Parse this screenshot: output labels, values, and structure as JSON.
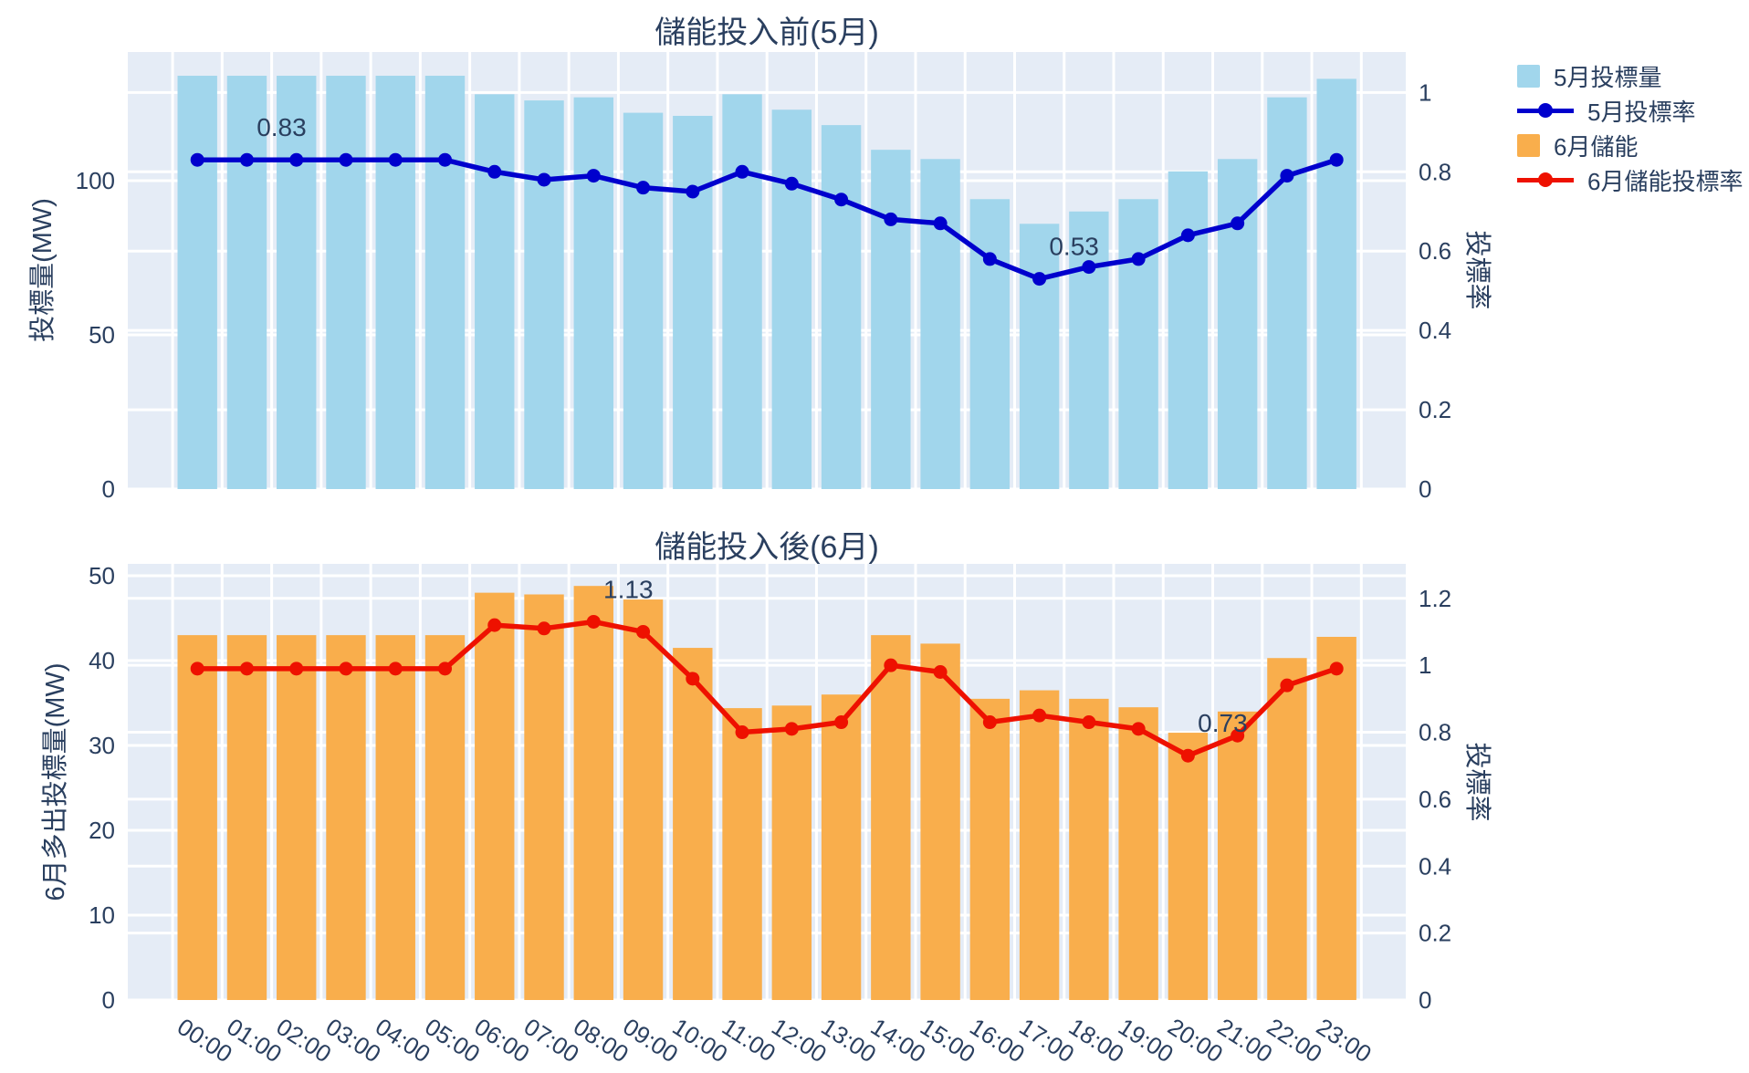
{
  "colors": {
    "text": "#2a3f5f",
    "plot_bg": "#e5ecf6",
    "grid": "#ffffff",
    "may_bar": "#a1d6ec",
    "may_line": "#0000cd",
    "jun_bar": "#f9ae4c",
    "jun_line": "#ee1100"
  },
  "legend": {
    "items": [
      {
        "label": "5月投標量",
        "swatch": "square",
        "color": "#a1d6ec"
      },
      {
        "label": "5月投標率",
        "swatch": "line",
        "color": "#0000cd"
      },
      {
        "label": "6月儲能",
        "swatch": "square",
        "color": "#f9ae4c"
      },
      {
        "label": "6月儲能投標率",
        "swatch": "line",
        "color": "#ee1100"
      }
    ]
  },
  "chart_data": [
    {
      "type": "bar+line",
      "title": "儲能投入前(5月)",
      "ylabel_left": "投標量(MW)",
      "ylabel_right": "投標率",
      "categories": [
        "00:00",
        "01:00",
        "02:00",
        "03:00",
        "04:00",
        "05:00",
        "06:00",
        "07:00",
        "08:00",
        "09:00",
        "10:00",
        "11:00",
        "12:00",
        "13:00",
        "14:00",
        "15:00",
        "16:00",
        "17:00",
        "18:00",
        "19:00",
        "20:00",
        "21:00",
        "22:00",
        "23:00"
      ],
      "series": [
        {
          "name": "5月投標量",
          "type": "bar",
          "axis": "left",
          "color_key": "may_bar",
          "values": [
            134,
            134,
            134,
            134,
            134,
            134,
            128,
            126,
            127,
            122,
            121,
            128,
            123,
            118,
            110,
            107,
            94,
            86,
            90,
            94,
            103,
            107,
            127,
            133
          ]
        },
        {
          "name": "5月投標率",
          "type": "line",
          "axis": "right",
          "color_key": "may_line",
          "values": [
            0.83,
            0.83,
            0.83,
            0.83,
            0.83,
            0.83,
            0.8,
            0.78,
            0.79,
            0.76,
            0.75,
            0.8,
            0.77,
            0.73,
            0.68,
            0.67,
            0.58,
            0.53,
            0.56,
            0.58,
            0.64,
            0.67,
            0.79,
            0.83
          ]
        }
      ],
      "yticks_left": [
        0,
        50,
        100
      ],
      "yticks_right": [
        0,
        0.2,
        0.4,
        0.6,
        0.8,
        1
      ],
      "ylim_left": [
        0,
        141.7
      ],
      "ylim_right": [
        0,
        1.102
      ],
      "annotations": [
        {
          "text": "0.83",
          "index": 1,
          "value": 0.83
        },
        {
          "text": "0.53",
          "index": 17,
          "value": 0.53
        }
      ],
      "show_x_tick_labels": false,
      "grid": true,
      "legend_position": "right"
    },
    {
      "type": "bar+line",
      "title": "儲能投入後(6月)",
      "ylabel_left": "6月多出投標量(MW)",
      "ylabel_right": "投標率",
      "categories": [
        "00:00",
        "01:00",
        "02:00",
        "03:00",
        "04:00",
        "05:00",
        "06:00",
        "07:00",
        "08:00",
        "09:00",
        "10:00",
        "11:00",
        "12:00",
        "13:00",
        "14:00",
        "15:00",
        "16:00",
        "17:00",
        "18:00",
        "19:00",
        "20:00",
        "21:00",
        "22:00",
        "23:00"
      ],
      "series": [
        {
          "name": "6月儲能",
          "type": "bar",
          "axis": "left",
          "color_key": "jun_bar",
          "values": [
            43,
            43,
            43,
            43,
            43,
            43,
            48,
            47.8,
            48.8,
            47.2,
            41.5,
            34.4,
            34.7,
            36,
            43,
            42,
            35.5,
            36.5,
            35.5,
            34.5,
            31.5,
            34,
            40.3,
            42.8
          ]
        },
        {
          "name": "6月儲能投標率",
          "type": "line",
          "axis": "right",
          "color_key": "jun_line",
          "values": [
            0.99,
            0.99,
            0.99,
            0.99,
            0.99,
            0.99,
            1.12,
            1.11,
            1.13,
            1.1,
            0.96,
            0.8,
            0.81,
            0.83,
            1.0,
            0.98,
            0.83,
            0.85,
            0.83,
            0.81,
            0.73,
            0.79,
            0.94,
            0.99
          ]
        }
      ],
      "yticks_left": [
        0,
        10,
        20,
        30,
        40,
        50
      ],
      "yticks_right": [
        0,
        0.2,
        0.4,
        0.6,
        0.8,
        1,
        1.2
      ],
      "ylim_left": [
        0,
        51.4
      ],
      "ylim_right": [
        0,
        1.303
      ],
      "annotations": [
        {
          "text": "1.13",
          "index": 8,
          "value": 1.13
        },
        {
          "text": "0.73",
          "index": 20,
          "value": 0.73
        }
      ],
      "show_x_tick_labels": true,
      "grid": true,
      "legend_position": "right"
    }
  ]
}
